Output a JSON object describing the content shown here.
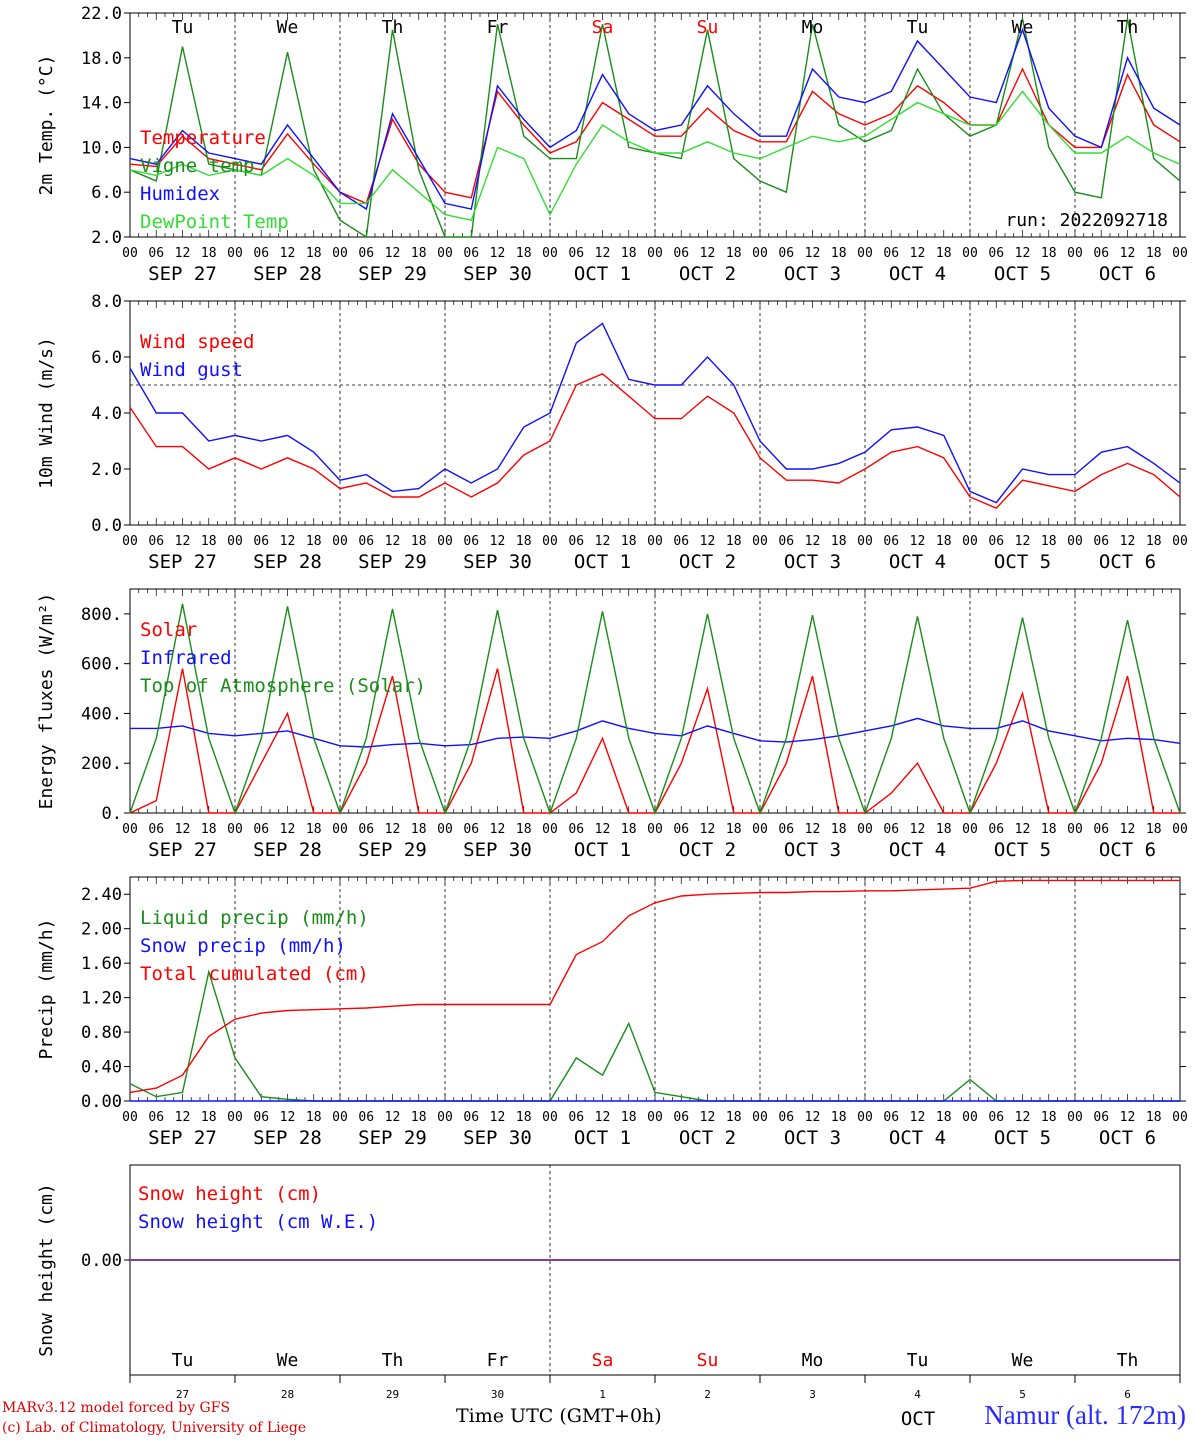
{
  "run_label": "run: 2022092718",
  "hour_ticks": [
    "00",
    "06",
    "12",
    "18"
  ],
  "days": [
    {
      "date": "SEP 27",
      "dow": "Tu",
      "dnum": "27",
      "weekend": false
    },
    {
      "date": "SEP 28",
      "dow": "We",
      "dnum": "28",
      "weekend": false
    },
    {
      "date": "SEP 29",
      "dow": "Th",
      "dnum": "29",
      "weekend": false
    },
    {
      "date": "SEP 30",
      "dow": "Fr",
      "dnum": "30",
      "weekend": false
    },
    {
      "date": "OCT  1",
      "dow": "Sa",
      "dnum": "1",
      "weekend": true
    },
    {
      "date": "OCT  2",
      "dow": "Su",
      "dnum": "2",
      "weekend": true
    },
    {
      "date": "OCT  3",
      "dow": "Mo",
      "dnum": "3",
      "weekend": false
    },
    {
      "date": "OCT  4",
      "dow": "Tu",
      "dnum": "4",
      "weekend": false
    },
    {
      "date": "OCT  5",
      "dow": "We",
      "dnum": "5",
      "weekend": false
    },
    {
      "date": "OCT  6",
      "dow": "Th",
      "dnum": "6",
      "weekend": false
    }
  ],
  "bottom_month": "OCT",
  "xlabel": "Time UTC (GMT+0h)",
  "credit_line1": "MARv3.12 model forced by GFS",
  "credit_line2": "(c) Lab. of Climatology, University of Liege",
  "station": "Namur (alt. 172m)",
  "colors": {
    "red": "#ff0000",
    "green": "#1a8c1a",
    "blue": "#1010ff",
    "light_green": "#33dd33",
    "purple": "#8040a0"
  },
  "chart_data": [
    {
      "type": "line",
      "ylabel": "2m Temp. (°C)",
      "ylim": [
        2.0,
        22.0
      ],
      "yticks": [
        "2.0",
        "6.0",
        "10.0",
        "14.0",
        "18.0",
        "22.0"
      ],
      "x": "hours from 2022-09-27 00 UTC, step 6h (0..240)",
      "series": [
        {
          "name": "Temperature",
          "color": "#ff0000",
          "values": [
            8.5,
            8.3,
            11.0,
            9.0,
            8.5,
            8.0,
            11.2,
            8.5,
            6.0,
            5.0,
            12.5,
            8.5,
            6.0,
            5.5,
            15.0,
            12.0,
            9.5,
            10.5,
            14.0,
            12.5,
            11.0,
            11.0,
            13.5,
            11.5,
            10.5,
            10.5,
            15.0,
            13.0,
            12.0,
            13.0,
            15.5,
            14.0,
            12.0,
            12.0,
            17.0,
            12.0,
            10.0,
            10.0,
            16.5,
            12.0,
            10.5
          ]
        },
        {
          "name": "Vigne temp",
          "color": "#1a8c1a",
          "values": [
            8.0,
            7.0,
            19.0,
            8.5,
            8.0,
            7.5,
            18.5,
            8.0,
            3.5,
            2.0,
            20.5,
            8.0,
            2.0,
            2.0,
            21.0,
            11.0,
            9.0,
            9.0,
            21.0,
            10.0,
            9.5,
            9.0,
            20.5,
            9.0,
            7.0,
            6.0,
            21.0,
            12.0,
            10.5,
            11.5,
            17.0,
            13.0,
            11.0,
            12.0,
            21.5,
            10.0,
            6.0,
            5.5,
            21.5,
            9.0,
            7.0
          ]
        },
        {
          "name": "Humidex",
          "color": "#1010ff",
          "values": [
            9.0,
            8.5,
            11.5,
            9.5,
            9.0,
            8.5,
            12.0,
            9.0,
            6.0,
            4.5,
            13.0,
            9.0,
            5.0,
            4.5,
            15.5,
            12.5,
            10.0,
            11.5,
            16.5,
            13.0,
            11.5,
            12.0,
            15.5,
            13.0,
            11.0,
            11.0,
            17.0,
            14.5,
            14.0,
            15.0,
            19.5,
            17.0,
            14.5,
            14.0,
            20.5,
            13.5,
            11.0,
            10.0,
            18.0,
            13.5,
            12.0
          ]
        },
        {
          "name": "DewPoint Temp",
          "color": "#33dd33",
          "values": [
            8.0,
            7.5,
            8.5,
            7.5,
            8.0,
            7.5,
            9.0,
            7.5,
            5.0,
            5.0,
            8.0,
            6.0,
            4.0,
            3.5,
            10.0,
            9.0,
            4.0,
            8.5,
            12.0,
            10.5,
            9.5,
            9.5,
            10.5,
            9.5,
            9.0,
            10.0,
            11.0,
            10.5,
            11.0,
            12.5,
            14.0,
            13.0,
            12.0,
            12.0,
            15.0,
            12.0,
            9.5,
            9.5,
            11.0,
            9.5,
            8.5
          ]
        }
      ]
    },
    {
      "type": "line",
      "ylabel": "10m Wind (m/s)",
      "ylim": [
        0.0,
        8.0
      ],
      "yticks": [
        "0.0",
        "2.0",
        "4.0",
        "6.0",
        "8.0"
      ],
      "reference_line": 5.0,
      "series": [
        {
          "name": "Wind speed",
          "color": "#ff0000",
          "values": [
            4.2,
            2.8,
            2.8,
            2.0,
            2.4,
            2.0,
            2.4,
            2.0,
            1.3,
            1.5,
            1.0,
            1.0,
            1.5,
            1.0,
            1.5,
            2.5,
            3.0,
            5.0,
            5.4,
            4.6,
            3.8,
            3.8,
            4.6,
            4.0,
            2.4,
            1.6,
            1.6,
            1.5,
            2.0,
            2.6,
            2.8,
            2.4,
            1.0,
            0.6,
            1.6,
            1.4,
            1.2,
            1.8,
            2.2,
            1.8,
            1.0
          ]
        },
        {
          "name": "Wind gust",
          "color": "#1010ff",
          "values": [
            5.6,
            4.0,
            4.0,
            3.0,
            3.2,
            3.0,
            3.2,
            2.6,
            1.6,
            1.8,
            1.2,
            1.3,
            2.0,
            1.5,
            2.0,
            3.5,
            4.0,
            6.5,
            7.2,
            5.2,
            5.0,
            5.0,
            6.0,
            5.0,
            3.0,
            2.0,
            2.0,
            2.2,
            2.6,
            3.4,
            3.5,
            3.2,
            1.2,
            0.8,
            2.0,
            1.8,
            1.8,
            2.6,
            2.8,
            2.2,
            1.5
          ]
        }
      ]
    },
    {
      "type": "line",
      "ylabel": "Energy fluxes (W/m²)",
      "ylim": [
        0,
        900
      ],
      "yticks": [
        "0.",
        "200.",
        "400.",
        "600.",
        "800."
      ],
      "series": [
        {
          "name": "Solar",
          "color": "#ff0000",
          "values": [
            0,
            50,
            580,
            0,
            0,
            200,
            400,
            0,
            0,
            200,
            550,
            0,
            0,
            200,
            580,
            0,
            0,
            80,
            300,
            0,
            0,
            200,
            500,
            0,
            0,
            200,
            550,
            0,
            0,
            80,
            200,
            0,
            0,
            200,
            480,
            0,
            0,
            200,
            550,
            0,
            0
          ]
        },
        {
          "name": "Infrared",
          "color": "#1010ff",
          "values": [
            340,
            340,
            350,
            320,
            310,
            320,
            330,
            300,
            270,
            265,
            275,
            280,
            270,
            275,
            300,
            305,
            300,
            330,
            370,
            340,
            320,
            310,
            350,
            320,
            290,
            285,
            295,
            310,
            330,
            350,
            380,
            350,
            340,
            340,
            370,
            330,
            310,
            290,
            300,
            295,
            280
          ]
        },
        {
          "name": "Top of Atmosphere (Solar)",
          "color": "#1a8c1a",
          "values": [
            0,
            300,
            840,
            300,
            0,
            300,
            830,
            300,
            0,
            300,
            820,
            300,
            0,
            300,
            815,
            300,
            0,
            300,
            810,
            300,
            0,
            300,
            800,
            300,
            0,
            300,
            795,
            300,
            0,
            300,
            790,
            300,
            0,
            300,
            785,
            300,
            0,
            300,
            775,
            300,
            0
          ]
        }
      ]
    },
    {
      "type": "line",
      "ylabel": "Precip (mm/h)",
      "ylim": [
        0.0,
        2.6
      ],
      "yticks": [
        "0.00",
        "0.40",
        "0.80",
        "1.20",
        "1.60",
        "2.00",
        "2.40"
      ],
      "series": [
        {
          "name": "Liquid precip (mm/h)",
          "color": "#1a8c1a",
          "values": [
            0.2,
            0.05,
            0.1,
            1.5,
            0.5,
            0.05,
            0.02,
            0.0,
            0.0,
            0.0,
            0.0,
            0.0,
            0.0,
            0.0,
            0.0,
            0.0,
            0.0,
            0.5,
            0.3,
            0.9,
            0.1,
            0.05,
            0.0,
            0.0,
            0.0,
            0.0,
            0.0,
            0.0,
            0.0,
            0.0,
            0.0,
            0.0,
            0.25,
            0.0,
            0.0,
            0.0,
            0.0,
            0.0,
            0.0,
            0.0,
            0.0
          ]
        },
        {
          "name": "Snow precip (mm/h)",
          "color": "#1010ff",
          "values": [
            0,
            0,
            0,
            0,
            0,
            0,
            0,
            0,
            0,
            0,
            0,
            0,
            0,
            0,
            0,
            0,
            0,
            0,
            0,
            0,
            0,
            0,
            0,
            0,
            0,
            0,
            0,
            0,
            0,
            0,
            0,
            0,
            0,
            0,
            0,
            0,
            0,
            0,
            0,
            0,
            0
          ]
        },
        {
          "name": "Total cumulated (cm)",
          "color": "#ff0000",
          "values": [
            0.1,
            0.15,
            0.3,
            0.75,
            0.95,
            1.02,
            1.05,
            1.06,
            1.07,
            1.08,
            1.1,
            1.12,
            1.12,
            1.12,
            1.12,
            1.12,
            1.12,
            1.7,
            1.85,
            2.15,
            2.3,
            2.38,
            2.4,
            2.41,
            2.42,
            2.42,
            2.43,
            2.43,
            2.44,
            2.44,
            2.45,
            2.46,
            2.47,
            2.55,
            2.56,
            2.56,
            2.56,
            2.56,
            2.56,
            2.56,
            2.56
          ]
        }
      ]
    },
    {
      "type": "line",
      "ylabel": "Snow height (cm)",
      "yticks": [
        "0.00"
      ],
      "series": [
        {
          "name": "Snow height (cm)",
          "color": "#ff0000",
          "values": [
            0,
            0
          ]
        },
        {
          "name": "Snow height (cm W.E.)",
          "color": "#1010ff",
          "values": [
            0,
            0
          ]
        }
      ]
    }
  ]
}
